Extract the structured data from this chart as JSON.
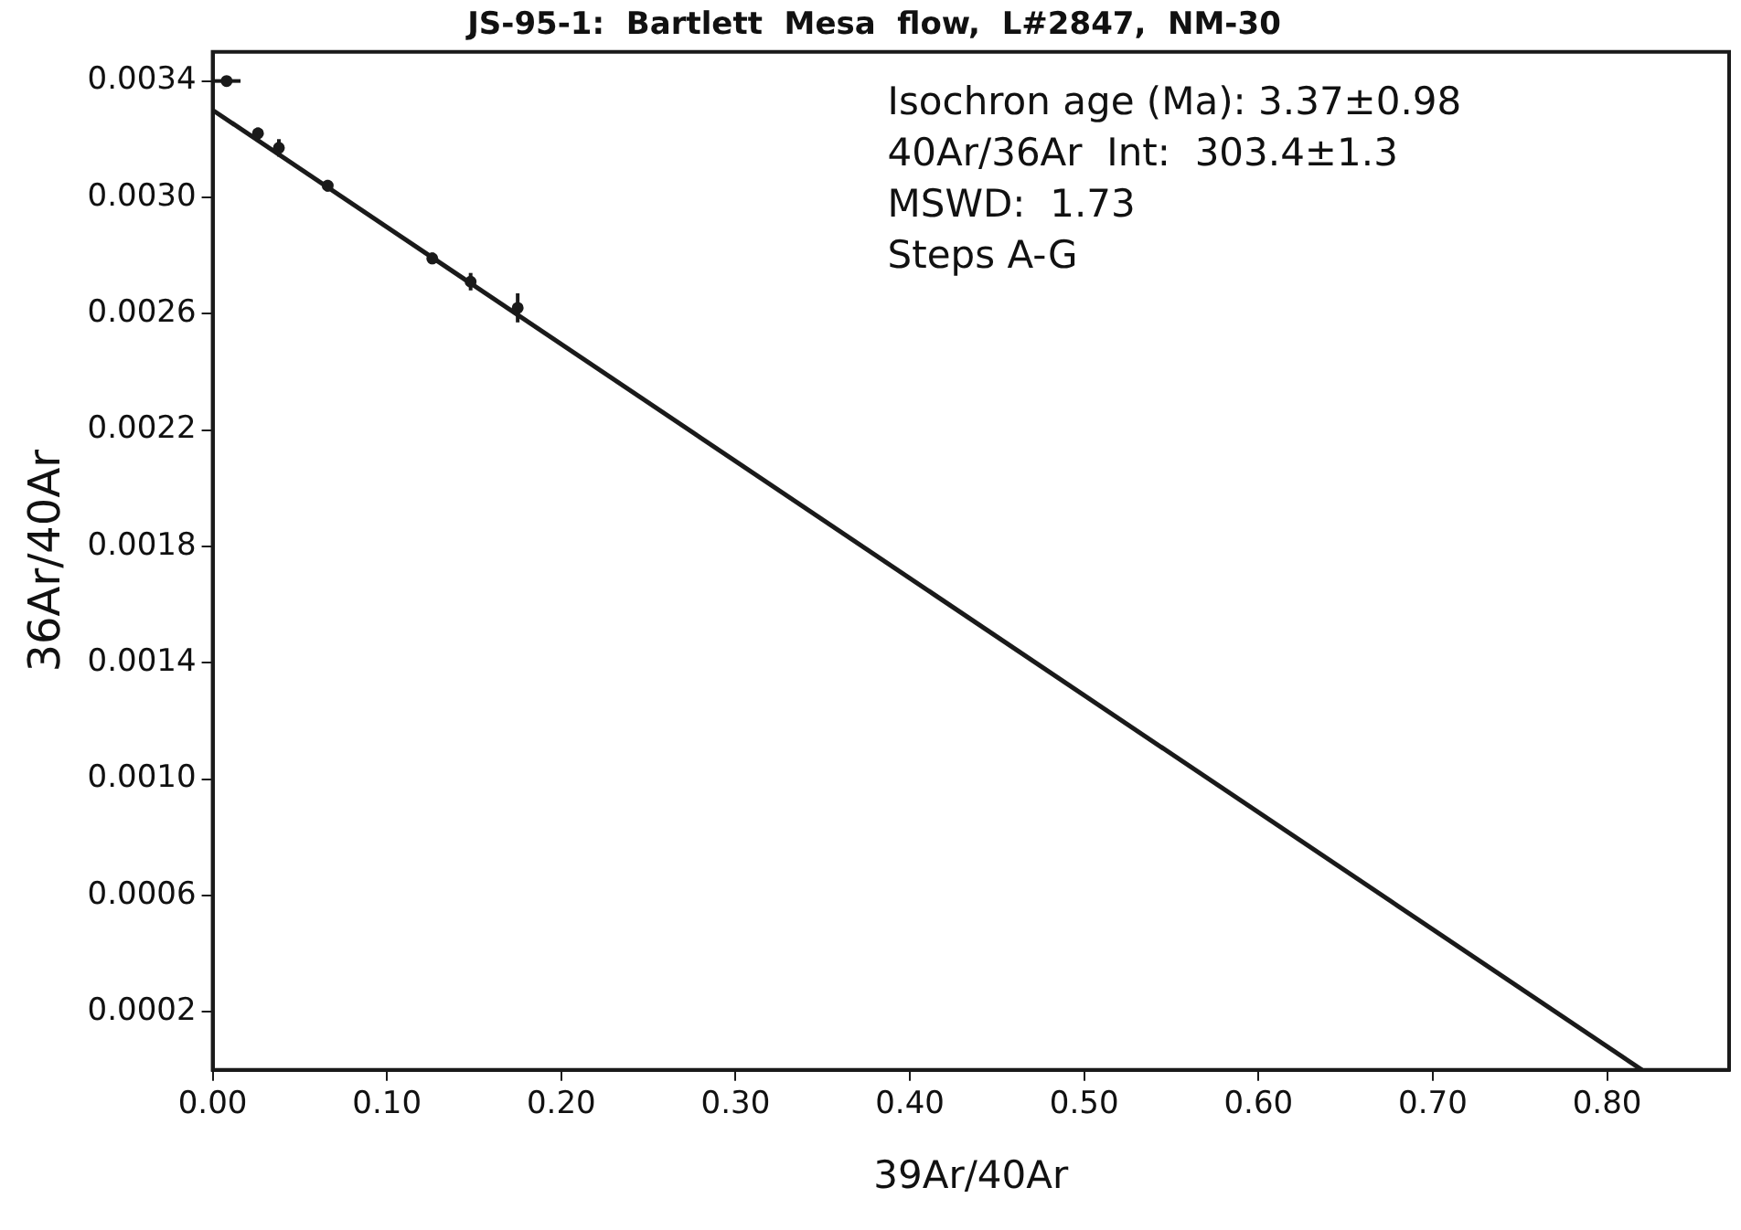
{
  "chart_data": {
    "type": "scatter",
    "title": "JS-95-1:  Bartlett  Mesa  flow,  L#2847,  NM-30",
    "xlabel": "39Ar/40Ar",
    "ylabel": "36Ar/40Ar",
    "annotations": [
      "Isochron age (Ma): 3.37±0.98",
      "40Ar/36Ar  Int:  303.4±1.3",
      "MSWD:  1.73",
      "Steps A-G"
    ],
    "series": [
      {
        "color": "#1a1a1a",
        "x": [
          0.008,
          0.026,
          0.038,
          0.066,
          0.126,
          0.148,
          0.175
        ],
        "values": [
          0.0034,
          0.00322,
          0.00317,
          0.00304,
          0.00279,
          0.00271,
          0.00262
        ],
        "errors": [
          1e-05,
          2e-05,
          3e-05,
          2e-05,
          2e-05,
          3e-05,
          5e-05
        ],
        "xerrors": [
          0.008,
          null,
          null,
          null,
          null,
          null,
          null
        ]
      },
      {
        "type": "line",
        "color": "#1a1a1a",
        "x": [
          0,
          0.82
        ],
        "values": [
          0.0033,
          0
        ]
      }
    ],
    "grid": false,
    "legend": false,
    "xlim": [
      0,
      0.87
    ],
    "ylim": [
      0,
      0.0035
    ],
    "xticks": [
      {
        "value": 0,
        "label": "0.00"
      },
      {
        "value": 0.1,
        "label": "0.10"
      },
      {
        "value": 0.2,
        "label": "0.20"
      },
      {
        "value": 0.3,
        "label": "0.30"
      },
      {
        "value": 0.4,
        "label": "0.40"
      },
      {
        "value": 0.5,
        "label": "0.50"
      },
      {
        "value": 0.6,
        "label": "0.60"
      },
      {
        "value": 0.7,
        "label": "0.70"
      },
      {
        "value": 0.8,
        "label": "0.80"
      }
    ],
    "yticks": [
      {
        "value": 0.0002,
        "label": "0.0002"
      },
      {
        "value": 0.0006,
        "label": "0.0006"
      },
      {
        "value": 0.001,
        "label": "0.0010"
      },
      {
        "value": 0.0014,
        "label": "0.0014"
      },
      {
        "value": 0.0018,
        "label": "0.0018"
      },
      {
        "value": 0.0022,
        "label": "0.0022"
      },
      {
        "value": 0.0026,
        "label": "0.0026"
      },
      {
        "value": 0.003,
        "label": "0.0030"
      },
      {
        "value": 0.0034,
        "label": "0.0034"
      }
    ]
  }
}
